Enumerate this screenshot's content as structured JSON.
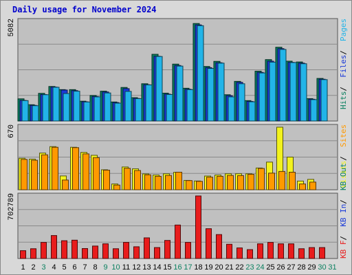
{
  "chart_data": {
    "type": "bar",
    "title": "Daily usage for November 2024",
    "days": [
      "1",
      "2",
      "3",
      "4",
      "5",
      "6",
      "7",
      "8",
      "9",
      "10",
      "11",
      "12",
      "13",
      "14",
      "15",
      "16",
      "17",
      "18",
      "19",
      "20",
      "21",
      "22",
      "23",
      "24",
      "25",
      "26",
      "27",
      "28",
      "29",
      "30",
      "31"
    ],
    "weekend_days": [
      "3",
      "9",
      "10",
      "16",
      "17",
      "23",
      "24",
      "30",
      "31"
    ],
    "colors": {
      "hits": "#0b8060",
      "files": "#1a3ad8",
      "pages": "#22b4e8",
      "visits": "#f2f21e",
      "sites": "#ff9900",
      "kb_out": "#0b8060",
      "kb_in": "#1a3ad8",
      "kb_f": "#e81c1c",
      "weekday_label": "#000000",
      "weekend_label": "#0b8060",
      "background": "#c0c0c0",
      "title": "#0000cc"
    },
    "panels": [
      {
        "id": "hits_files_pages",
        "ymax_label": "5082",
        "ymax": 5082,
        "right_labels": [
          {
            "text": "Hits",
            "color": "#0b8060"
          },
          {
            "text": "Files",
            "color": "#1a3ad8"
          },
          {
            "text": "Pages",
            "color": "#22b4e8"
          }
        ],
        "series": [
          {
            "name": "Hits",
            "values": [
              1130,
              830,
              1410,
              1760,
              1600,
              1600,
              1010,
              1300,
              1520,
              970,
              1710,
              1190,
              1900,
              3400,
              1420,
              2900,
              1670,
              4970,
              2780,
              3040,
              1340,
              2020,
              1040,
              2540,
              3130,
              3760,
              3050,
              3010,
              1140,
              2170,
              null
            ]
          },
          {
            "name": "Files",
            "values": [
              1050,
              800,
              1350,
              1730,
              1580,
              1550,
              980,
              1250,
              1480,
              940,
              1650,
              1150,
              1850,
              3300,
              1370,
              2830,
              1620,
              4900,
              2720,
              2970,
              1290,
              1970,
              1000,
              2480,
              3050,
              3690,
              2990,
              2950,
              1110,
              2130,
              null
            ]
          },
          {
            "name": "Pages",
            "values": [
              1040,
              780,
              1340,
              1720,
              1400,
              1520,
              970,
              1230,
              1430,
              910,
              1510,
              1140,
              1840,
              3290,
              1350,
              2800,
              1600,
              4860,
              2680,
              2950,
              1230,
              1900,
              980,
              2450,
              3000,
              3650,
              2980,
              2920,
              1090,
              2110,
              null
            ]
          }
        ]
      },
      {
        "id": "visits_sites",
        "ymax_label": "670",
        "ymax": 670,
        "right_labels": [
          {
            "text": "Visits",
            "color": "#f2f21e"
          },
          {
            "text": "Sites",
            "color": "#ff9900"
          }
        ],
        "series": [
          {
            "name": "Visits",
            "values": [
              337,
              328,
              393,
              462,
              148,
              455,
              400,
              369,
              214,
              62,
              244,
              224,
              170,
              158,
              171,
              187,
              100,
              94,
              147,
              158,
              171,
              171,
              171,
              233,
              296,
              670,
              350,
              93,
              111,
              null,
              null
            ]
          },
          {
            "name": "Sites",
            "values": [
              325,
              316,
              374,
              455,
              104,
              451,
              384,
              344,
              210,
              50,
              230,
              206,
              160,
              144,
              153,
              188,
              98,
              90,
              135,
              144,
              153,
              151,
              165,
              228,
              178,
              196,
              188,
              62,
              82,
              null,
              null
            ]
          }
        ]
      },
      {
        "id": "kbytes",
        "ymax_label": "702789",
        "ymax": 702789,
        "right_labels": [
          {
            "text": "KB F",
            "color": "#e81c1c"
          },
          {
            "text": "KB In",
            "color": "#1a3ad8"
          },
          {
            "text": "KB Out",
            "color": "#0b8060"
          }
        ],
        "series": [
          {
            "name": "KB F",
            "values": [
              88000,
              110000,
              181000,
              258000,
              200000,
              206000,
              112000,
              140000,
              165000,
              110000,
              181000,
              132000,
              232000,
              123000,
              203000,
              376000,
              181000,
              702789,
              335000,
              269000,
              160000,
              119000,
              100000,
              165000,
              181000,
              165000,
              165000,
              110000,
              123000,
              123000,
              null
            ]
          }
        ]
      }
    ]
  }
}
